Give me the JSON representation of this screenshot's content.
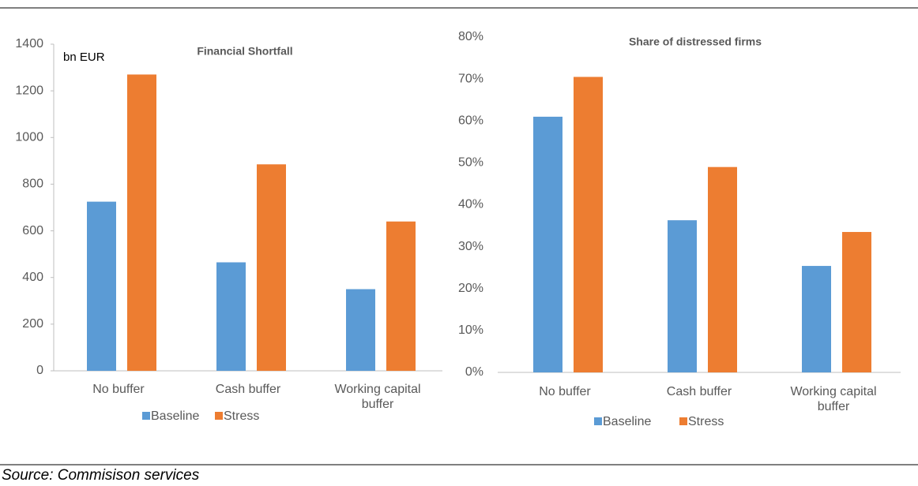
{
  "chart_data": [
    {
      "type": "bar",
      "title": "Financial Shortfall",
      "unit_label": "bn EUR",
      "categories": [
        "No buffer",
        "Cash buffer",
        "Working capital buffer"
      ],
      "series": [
        {
          "name": "Baseline",
          "color": "#5b9bd5",
          "values": [
            725,
            465,
            350
          ]
        },
        {
          "name": "Stress",
          "color": "#ed7d31",
          "values": [
            1270,
            885,
            640
          ]
        }
      ],
      "ylim": [
        0,
        1400
      ],
      "yticks": [
        0,
        200,
        400,
        600,
        800,
        1000,
        1200,
        1400
      ],
      "legend": "bottom"
    },
    {
      "type": "bar",
      "title": "Share of distressed firms",
      "categories": [
        "No buffer",
        "Cash buffer",
        "Working capital buffer"
      ],
      "series": [
        {
          "name": "Baseline",
          "color": "#5b9bd5",
          "values": [
            61,
            36.3,
            25.4
          ]
        },
        {
          "name": "Stress",
          "color": "#ed7d31",
          "values": [
            70.5,
            49,
            33.5
          ]
        }
      ],
      "ylim": [
        0,
        80
      ],
      "yticks": [
        {
          "value": 0,
          "label": "0%"
        },
        {
          "value": 10,
          "label": "10%"
        },
        {
          "value": 20,
          "label": "20%"
        },
        {
          "value": 30,
          "label": "30%"
        },
        {
          "value": 40,
          "label": "40%"
        },
        {
          "value": 50,
          "label": "50%"
        },
        {
          "value": 60,
          "label": "60%"
        },
        {
          "value": 70,
          "label": "70%"
        },
        {
          "value": 80,
          "label": "80%"
        }
      ],
      "legend": "bottom"
    }
  ],
  "source": "Source: Commisison services"
}
